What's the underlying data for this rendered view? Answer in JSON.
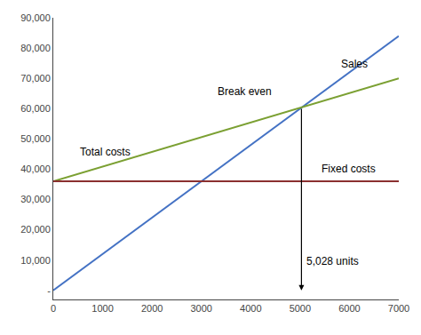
{
  "chart_data": {
    "type": "line",
    "x": [
      0,
      7000
    ],
    "series": [
      {
        "color": "#4472C4",
        "values": [
          0,
          84000
        ]
      },
      {
        "color": "#7BA032",
        "values": [
          36000,
          69999
        ]
      },
      {
        "color": "#8B3030",
        "values": [
          36000,
          36000
        ]
      }
    ],
    "xlim": [
      0,
      7000
    ],
    "ylim": [
      -3000,
      90000
    ],
    "xticks": [
      0,
      1000,
      2000,
      3000,
      4000,
      5000,
      6000,
      7000
    ],
    "yticks": [
      {
        "value": 0,
        "label": "-"
      },
      {
        "value": 10000,
        "label": "10,000"
      },
      {
        "value": 20000,
        "label": "20,000"
      },
      {
        "value": 30000,
        "label": "30,000"
      },
      {
        "value": 40000,
        "label": "40,000"
      },
      {
        "value": 50000,
        "label": "50,000"
      },
      {
        "value": 60000,
        "label": "60,000"
      },
      {
        "value": 70000,
        "label": "70,000"
      },
      {
        "value": 80000,
        "label": "80,000"
      },
      {
        "value": 90000,
        "label": "90,000"
      }
    ],
    "annotations": [
      {
        "text": "Sales",
        "x": 5800,
        "y": 72000
      },
      {
        "text": "Total costs",
        "x": 500,
        "y": 43000
      },
      {
        "text": "Fixed costs",
        "x": 5400,
        "y": 37500
      },
      {
        "text": "Break even",
        "x": 3300,
        "y": 63000
      },
      {
        "text": "5,028 units",
        "x": 5100,
        "y": 7000
      }
    ],
    "arrows": [
      {
        "x0": 5028,
        "y0": 60336,
        "x1": 5028,
        "y1": 0,
        "color": "#000000"
      }
    ],
    "grid": false
  }
}
